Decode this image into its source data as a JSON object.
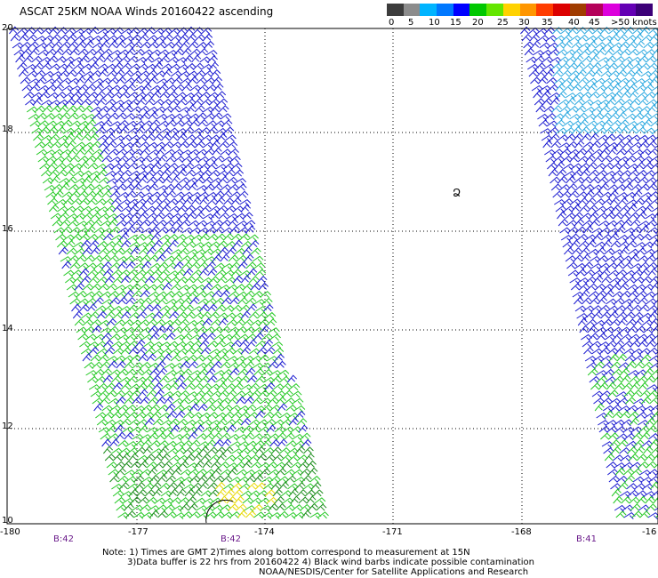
{
  "title": "ASCAT 25KM NOAA Winds 20160422 ascending",
  "legend": {
    "colors": [
      "#3c3c3c",
      "#8c8c8c",
      "#00b4ff",
      "#0078ff",
      "#0000ff",
      "#00c800",
      "#64e600",
      "#ffd200",
      "#ff9600",
      "#ff3c00",
      "#dc0000",
      "#a03c00",
      "#b4005a",
      "#dc00dc",
      "#6400b4",
      "#3c0078"
    ],
    "labels": [
      "0",
      "5",
      "10",
      "15",
      "20",
      "25",
      "30",
      "35",
      "40",
      "45",
      ">50 knots"
    ]
  },
  "axes": {
    "y_labels": [
      "20",
      "18",
      "16",
      "14",
      "12",
      "10"
    ],
    "x_labels": [
      "-180",
      "-177",
      "-174",
      "-171",
      "-168",
      "-16"
    ],
    "time_labels": [
      "B:42",
      "B:42",
      "B:41"
    ]
  },
  "marker": "Ձ",
  "notes": {
    "line1": "Note: 1) Times are GMT 2)Times along bottom correspond to measurement at 15N",
    "line2": "3)Data buffer is 22 hrs from 20160422 4) Black wind barbs indicate possible contamination",
    "line3": "NOAA/NESDIS/Center for Satellite Applications and Research"
  },
  "colors": {
    "blue": "#1a1ad0",
    "lightblue": "#2aa8e0",
    "green": "#22c822",
    "darkgreen": "#1a8c1a",
    "yellow": "#e8d800",
    "grid": "#000000",
    "timelabel": "#6a1a8a"
  }
}
